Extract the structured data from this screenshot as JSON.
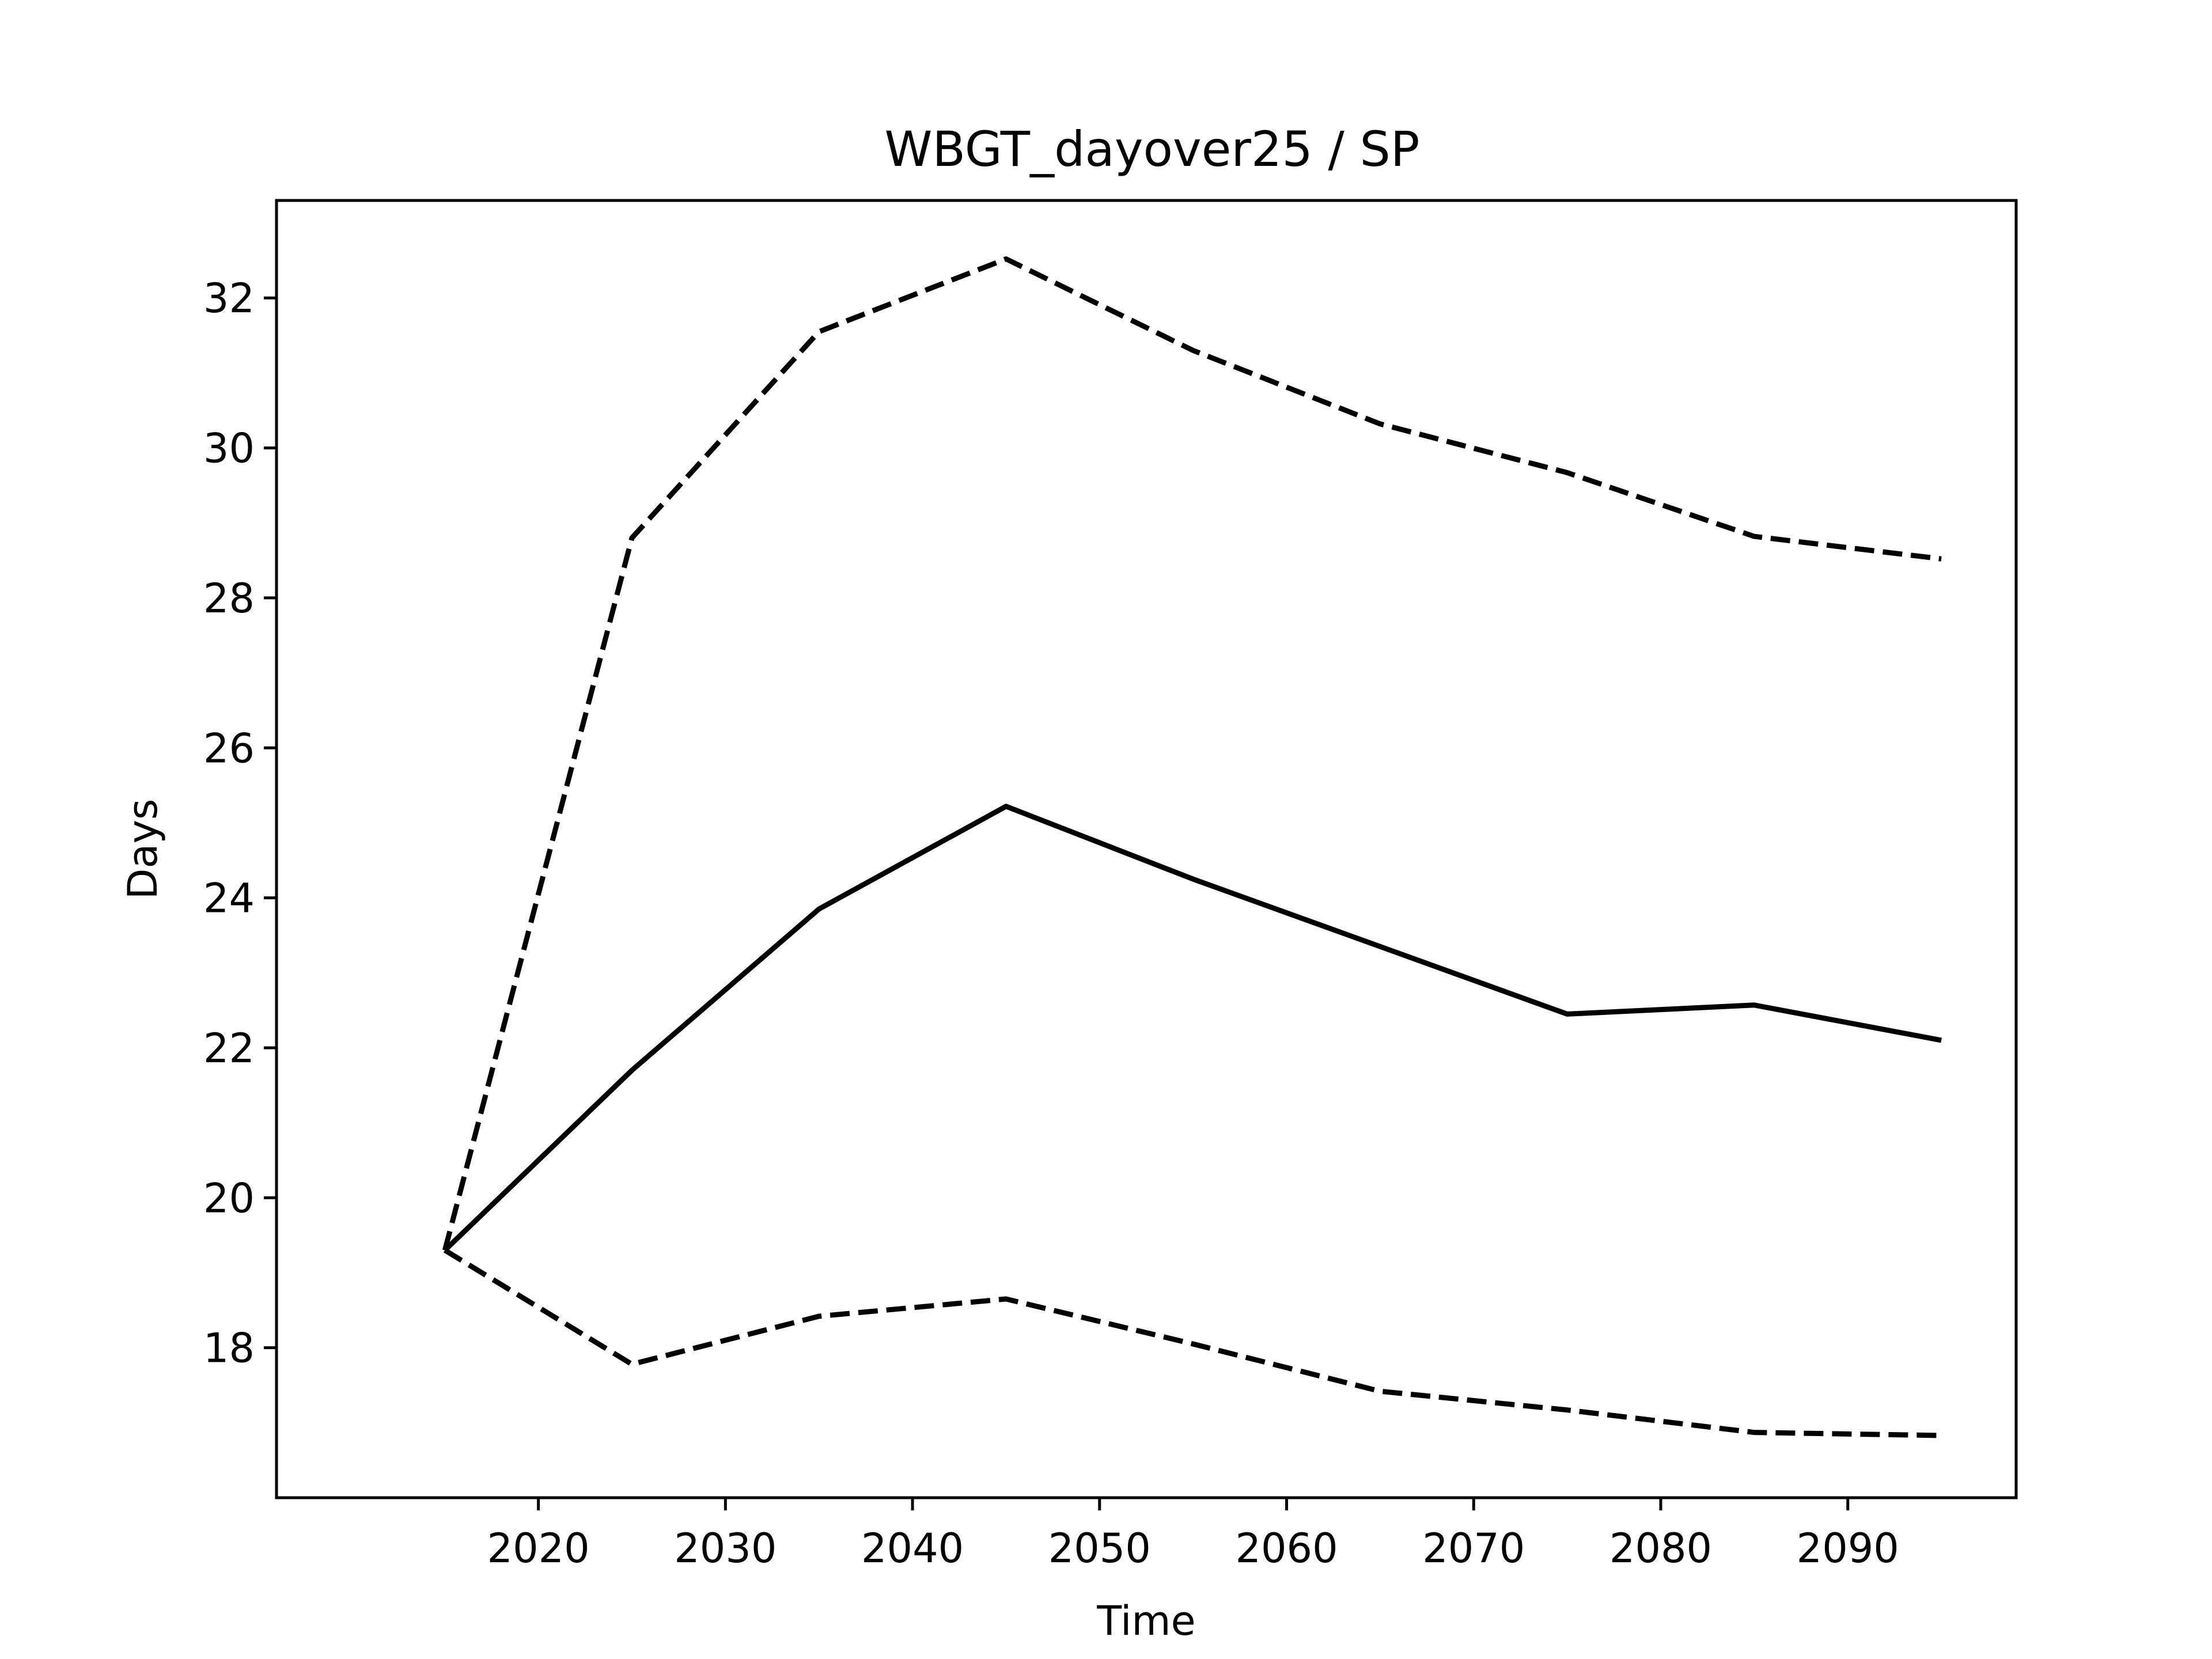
{
  "chart_data": {
    "type": "line",
    "title": "WBGT_dayover25 / SP",
    "xlabel": "Time",
    "ylabel": "Days",
    "x": [
      2015,
      2025,
      2035,
      2045,
      2055,
      2065,
      2075,
      2085,
      2095
    ],
    "xlim": [
      2006,
      2099
    ],
    "ylim": [
      16.0,
      33.3
    ],
    "xticks": [
      2020,
      2030,
      2040,
      2050,
      2060,
      2070,
      2080,
      2090
    ],
    "yticks": [
      18,
      20,
      22,
      24,
      26,
      28,
      30,
      32
    ],
    "grid": false,
    "legend": "none",
    "series": [
      {
        "style": "solid",
        "color": "#000000",
        "values": [
          19.3,
          21.7,
          23.85,
          25.22,
          24.25,
          23.35,
          22.45,
          22.57,
          22.1
        ]
      },
      {
        "style": "dashed",
        "color": "#000000",
        "values": [
          19.3,
          28.8,
          31.55,
          32.52,
          31.3,
          30.32,
          29.67,
          28.82,
          28.52
        ]
      },
      {
        "style": "dashed",
        "color": "#000000",
        "values": [
          19.3,
          17.78,
          18.42,
          18.65,
          18.05,
          17.42,
          17.17,
          16.87,
          16.83
        ]
      }
    ]
  }
}
